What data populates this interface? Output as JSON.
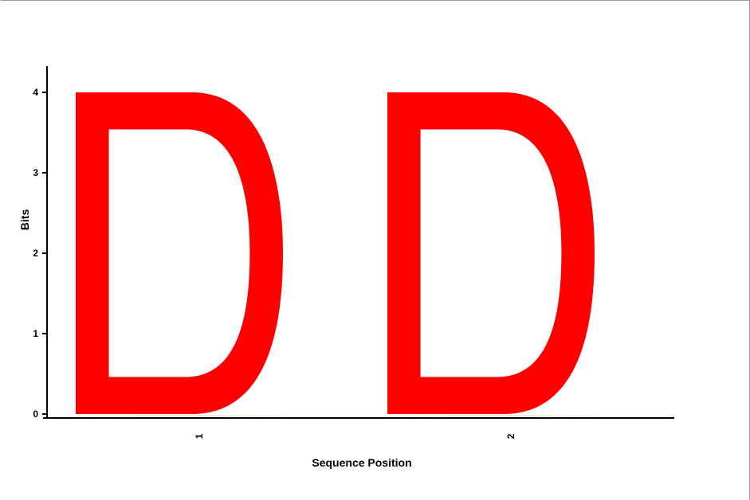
{
  "chart_data": {
    "type": "sequence-logo",
    "xlabel": "Sequence Position",
    "ylabel": "Bits",
    "ylim": [
      0,
      4.32
    ],
    "yticks": [
      0,
      1,
      2,
      3,
      4
    ],
    "positions": [
      "1",
      "2"
    ],
    "stacks": [
      {
        "position": "1",
        "letters": [
          {
            "letter": "D",
            "bits": 4.0,
            "color": "#ff0000"
          }
        ]
      },
      {
        "position": "2",
        "letters": [
          {
            "letter": "D",
            "bits": 4.0,
            "color": "#ff0000"
          }
        ]
      }
    ],
    "grid": false,
    "legend": "none"
  },
  "colors": {
    "letter_D": "#ff0000",
    "axis": "#000000",
    "background": "#ffffff"
  }
}
